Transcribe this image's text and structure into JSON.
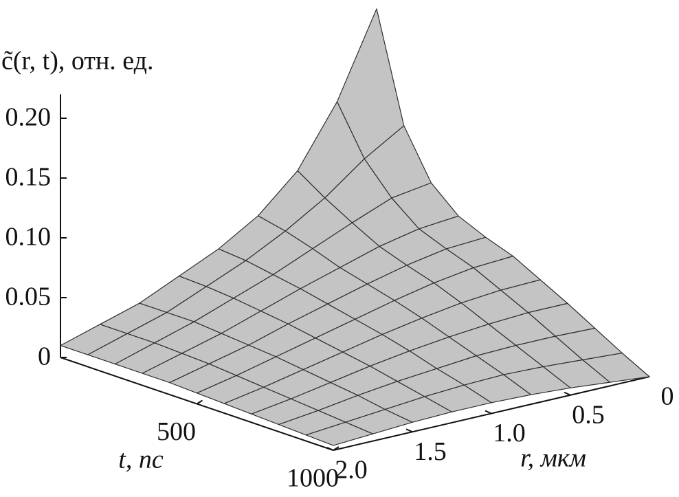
{
  "chart_data": {
    "type": "surface",
    "zlabel": "c̃(r, t), отн. ед.",
    "xlabel": "r, мкм",
    "ylabel": "t, пс",
    "r": [
      0,
      0.25,
      0.5,
      0.75,
      1.0,
      1.25,
      1.5,
      1.75,
      2.0
    ],
    "t": [
      0,
      100,
      200,
      300,
      400,
      500,
      600,
      700,
      800,
      900,
      1000
    ],
    "z": [
      [
        0.23,
        0.16,
        0.11,
        0.08,
        0.06,
        0.045,
        0.03,
        0.02,
        0.01
      ],
      [
        0.14,
        0.12,
        0.095,
        0.075,
        0.058,
        0.044,
        0.03,
        0.02,
        0.01
      ],
      [
        0.1,
        0.095,
        0.082,
        0.068,
        0.054,
        0.042,
        0.03,
        0.02,
        0.01
      ],
      [
        0.08,
        0.077,
        0.07,
        0.06,
        0.05,
        0.039,
        0.028,
        0.019,
        0.01
      ],
      [
        0.07,
        0.068,
        0.062,
        0.054,
        0.045,
        0.036,
        0.026,
        0.018,
        0.01
      ],
      [
        0.062,
        0.06,
        0.055,
        0.048,
        0.04,
        0.032,
        0.024,
        0.016,
        0.009
      ],
      [
        0.05,
        0.049,
        0.046,
        0.041,
        0.035,
        0.028,
        0.021,
        0.014,
        0.008
      ],
      [
        0.038,
        0.038,
        0.036,
        0.033,
        0.029,
        0.024,
        0.018,
        0.012,
        0.007
      ],
      [
        0.025,
        0.026,
        0.026,
        0.025,
        0.022,
        0.019,
        0.015,
        0.01,
        0.006
      ],
      [
        0.012,
        0.014,
        0.016,
        0.017,
        0.016,
        0.014,
        0.011,
        0.008,
        0.005
      ],
      [
        0.0,
        0.003,
        0.006,
        0.008,
        0.009,
        0.009,
        0.008,
        0.006,
        0.004
      ]
    ],
    "rlim": [
      0,
      2
    ],
    "tlim": [
      0,
      1000
    ],
    "zlim": [
      0,
      0.22
    ],
    "zticks": [
      0,
      {
        "value": 0.05,
        "label": "0.05"
      },
      {
        "value": 0.1,
        "label": "0.10"
      },
      0.15,
      {
        "value": 0.2,
        "label": "0.20"
      }
    ],
    "rticks": [
      0,
      0.5,
      {
        "value": 1,
        "label": "1.0"
      },
      1.5,
      {
        "value": 2,
        "label": "2.0"
      }
    ],
    "tticks": [
      500,
      1000
    ],
    "color": "#c4c4c4",
    "edgecolor": "#2e2e2e"
  }
}
